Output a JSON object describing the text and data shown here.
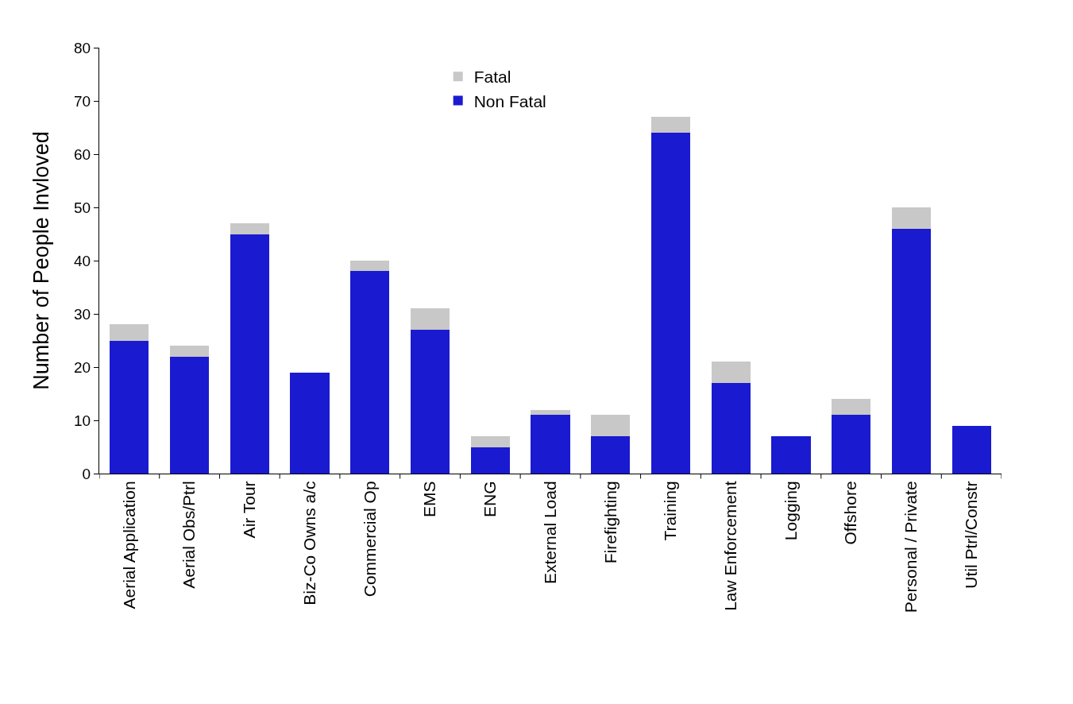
{
  "chart_data": {
    "type": "bar",
    "stacked": true,
    "ylabel": "Number of People Invloved",
    "categories": [
      "Aerial Application",
      "Aerial Obs/Ptrl",
      "Air Tour",
      "Biz-Co Owns a/c",
      "Commercial Op",
      "EMS",
      "ENG",
      "External Load",
      "Firefighting",
      "Training",
      "Law Enforcement",
      "Logging",
      "Offshore",
      "Personal / Private",
      "Util Ptrl/Constr"
    ],
    "series": [
      {
        "name": "Non Fatal",
        "color": "#1a1ad0",
        "values": [
          25,
          22,
          45,
          19,
          38,
          27,
          5,
          11,
          7,
          64,
          17,
          7,
          11,
          46,
          9
        ]
      },
      {
        "name": "Fatal",
        "color": "#c8c8c8",
        "values": [
          3,
          2,
          2,
          0,
          2,
          4,
          2,
          1,
          4,
          3,
          4,
          0,
          3,
          4,
          0
        ]
      }
    ],
    "ylim": [
      0,
      80
    ],
    "yticks": [
      0,
      10,
      20,
      30,
      40,
      50,
      60,
      70,
      80
    ],
    "grid": false,
    "legend": "top"
  }
}
